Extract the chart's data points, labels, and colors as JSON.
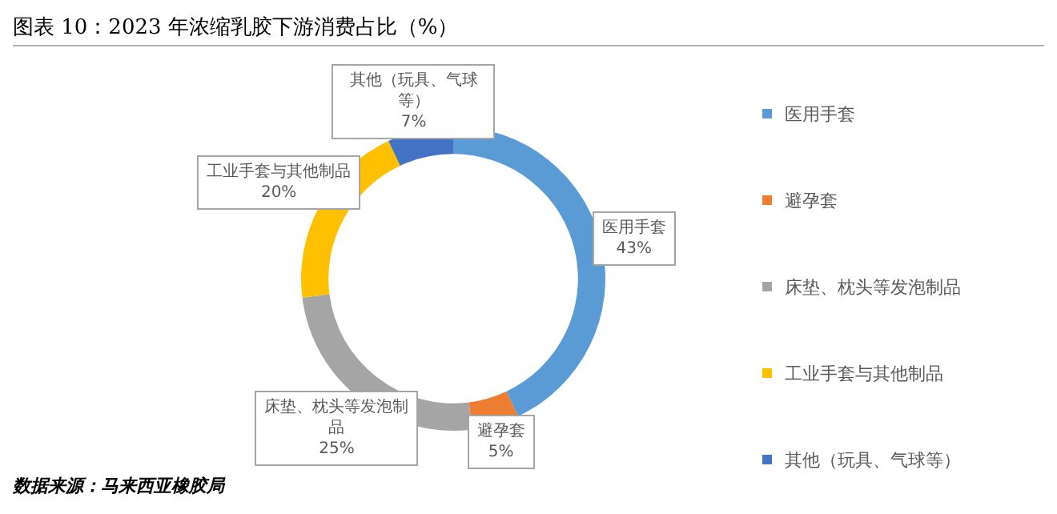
{
  "chart_data": {
    "type": "donut",
    "title": "图表 10：2023 年浓缩乳胶下游消费占比（%）",
    "categories": [
      "医用手套",
      "避孕套",
      "床垫、枕头等发泡制品",
      "工业手套与其他制品",
      "其他（玩具、气球等）"
    ],
    "values": [
      43,
      5,
      25,
      20,
      7
    ],
    "colors": [
      "#5b9bd5",
      "#ed7d31",
      "#a5a5a5",
      "#ffc000",
      "#4472c4"
    ],
    "value_labels": [
      "43%",
      "5%",
      "25%",
      "20%",
      "7%"
    ],
    "legend": "right",
    "annotations": [
      "数据来源：马来西亚橡胶局"
    ]
  }
}
